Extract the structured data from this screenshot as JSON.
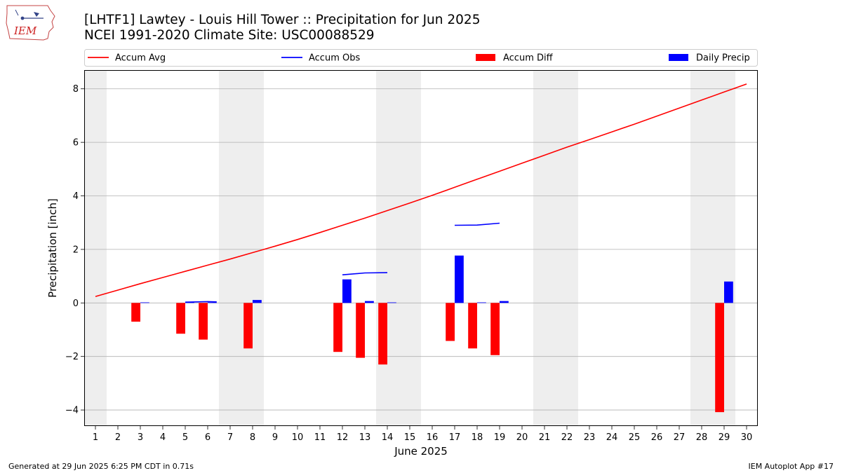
{
  "title_lines": [
    "[LHTF1] Lawtey - Louis Hill Tower :: Precipitation for Jun 2025",
    "NCEI 1991-2020 Climate Site: USC00088529"
  ],
  "logo_text": "IEM",
  "footer_left": "Generated at 29 Jun 2025 6:25 PM CDT in 0.71s",
  "footer_right": "IEM Autoplot App #17",
  "colors": {
    "avg": "#ff0000",
    "obs": "#0000ff",
    "diff": "#ff0000",
    "daily": "#0000ff",
    "weekend": "#eeeeee",
    "grid": "#b0b0b0"
  },
  "chart_data": {
    "type": "bar",
    "xlabel": "June 2025",
    "ylabel": "Precipitation [inch]",
    "xlim": [
      0.5,
      30.5
    ],
    "ylim": [
      -4.6,
      8.7
    ],
    "yticks": [
      -4,
      -2,
      0,
      2,
      4,
      6,
      8
    ],
    "ytick_labels": [
      "−4",
      "−2",
      "0",
      "2",
      "4",
      "6",
      "8"
    ],
    "xticks": [
      1,
      2,
      3,
      4,
      5,
      6,
      7,
      8,
      9,
      10,
      11,
      12,
      13,
      14,
      15,
      16,
      17,
      18,
      19,
      20,
      21,
      22,
      23,
      24,
      25,
      26,
      27,
      28,
      29,
      30
    ],
    "grid": "y",
    "legend_placement": "top",
    "legend": [
      {
        "label": "Accum Avg",
        "kind": "line",
        "color": "#ff0000"
      },
      {
        "label": "Accum Obs",
        "kind": "line",
        "color": "#0000ff"
      },
      {
        "label": "Accum Diff",
        "kind": "bar",
        "color": "#ff0000"
      },
      {
        "label": "Daily Precip",
        "kind": "bar",
        "color": "#0000ff"
      }
    ],
    "weekend_bands": [
      [
        0.5,
        1.5
      ],
      [
        6.5,
        8.5
      ],
      [
        13.5,
        15.5
      ],
      [
        20.5,
        22.5
      ],
      [
        27.5,
        29.5
      ]
    ],
    "accum_avg": {
      "x": [
        1,
        2,
        3,
        4,
        5,
        6,
        7,
        8,
        9,
        10,
        11,
        12,
        13,
        14,
        15,
        16,
        17,
        18,
        19,
        20,
        21,
        22,
        23,
        24,
        25,
        26,
        27,
        28,
        29,
        30
      ],
      "y": [
        0.24,
        0.48,
        0.72,
        0.95,
        1.18,
        1.41,
        1.64,
        1.88,
        2.12,
        2.37,
        2.63,
        2.9,
        3.17,
        3.45,
        3.73,
        4.02,
        4.32,
        4.62,
        4.92,
        5.22,
        5.52,
        5.82,
        6.1,
        6.39,
        6.68,
        6.98,
        7.28,
        7.58,
        7.88,
        8.18
      ]
    },
    "accum_obs_segments": [
      {
        "x": [
          5,
          6,
          6.4
        ],
        "y": [
          0.03,
          0.05,
          0.04
        ]
      },
      {
        "x": [
          12,
          13,
          14
        ],
        "y": [
          1.05,
          1.12,
          1.13
        ]
      },
      {
        "x": [
          17,
          18,
          19
        ],
        "y": [
          2.9,
          2.91,
          2.98
        ]
      }
    ],
    "accum_diff": {
      "x": [
        3,
        5,
        6,
        8,
        12,
        13,
        14,
        17,
        18,
        19,
        29
      ],
      "y": [
        -0.7,
        -1.15,
        -1.37,
        -1.7,
        -1.83,
        -2.05,
        -2.3,
        -1.42,
        -1.7,
        -1.95,
        -4.08
      ]
    },
    "daily_precip": {
      "x": [
        3,
        5,
        6,
        8,
        12,
        13,
        14,
        17,
        18,
        19,
        29
      ],
      "y": [
        0.02,
        0.03,
        0.02,
        0.11,
        0.88,
        0.07,
        0.02,
        1.77,
        0.02,
        0.07,
        0.8
      ]
    }
  }
}
